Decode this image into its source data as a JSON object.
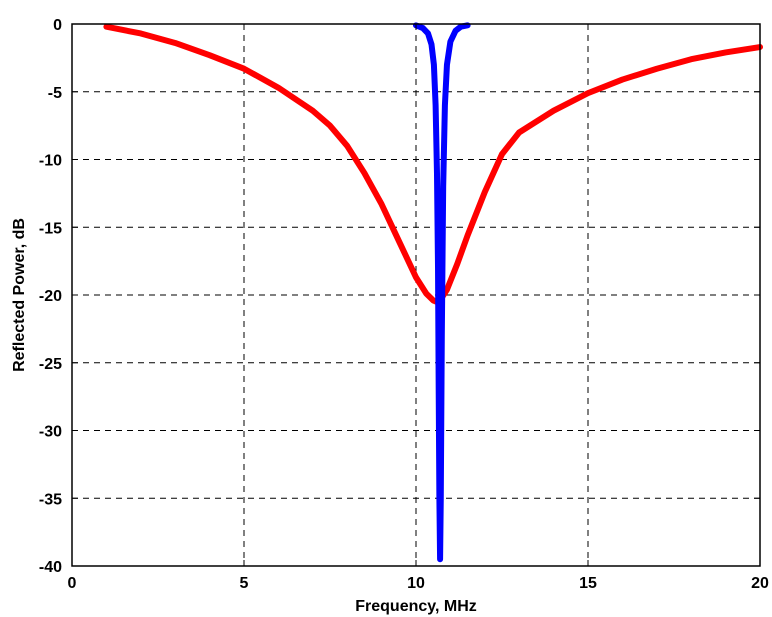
{
  "chart_data": {
    "type": "line",
    "title": "",
    "xlabel": "Frequency, MHz",
    "ylabel": "Reflected Power, dB",
    "xlim": [
      0,
      20
    ],
    "ylim": [
      -40,
      0
    ],
    "xticks": [
      0,
      5,
      10,
      15,
      20
    ],
    "yticks": [
      0,
      -5,
      -10,
      -15,
      -20,
      -25,
      -30,
      -35,
      -40
    ],
    "grid": true,
    "legend": "none",
    "series": [
      {
        "color": "#ff0000",
        "x": [
          1,
          2,
          3,
          4,
          5,
          6,
          7,
          7.5,
          8,
          8.5,
          9,
          9.5,
          10,
          10.3,
          10.5,
          10.6,
          10.7,
          10.9,
          11.2,
          11.5,
          12,
          12.5,
          13,
          14,
          15,
          16,
          17,
          18,
          19,
          20
        ],
        "y": [
          -0.2,
          -0.7,
          -1.4,
          -2.3,
          -3.3,
          -4.7,
          -6.4,
          -7.5,
          -9.0,
          -11.0,
          -13.3,
          -16.0,
          -18.7,
          -19.9,
          -20.4,
          -20.5,
          -20.4,
          -19.6,
          -17.7,
          -15.6,
          -12.4,
          -9.6,
          -8.0,
          -6.4,
          -5.1,
          -4.1,
          -3.3,
          -2.6,
          -2.1,
          -1.7
        ]
      },
      {
        "color": "#0000ff",
        "x": [
          10.0,
          10.2,
          10.35,
          10.45,
          10.52,
          10.57,
          10.61,
          10.64,
          10.66,
          10.68,
          10.7,
          10.72,
          10.75,
          10.79,
          10.84,
          10.9,
          11.0,
          11.15,
          11.3,
          11.5
        ],
        "y": [
          -0.1,
          -0.3,
          -0.7,
          -1.5,
          -3.0,
          -6.0,
          -11.0,
          -18.0,
          -27.0,
          -35.0,
          -39.5,
          -35.0,
          -23.0,
          -12.0,
          -6.0,
          -3.0,
          -1.3,
          -0.5,
          -0.2,
          -0.1
        ]
      }
    ]
  }
}
